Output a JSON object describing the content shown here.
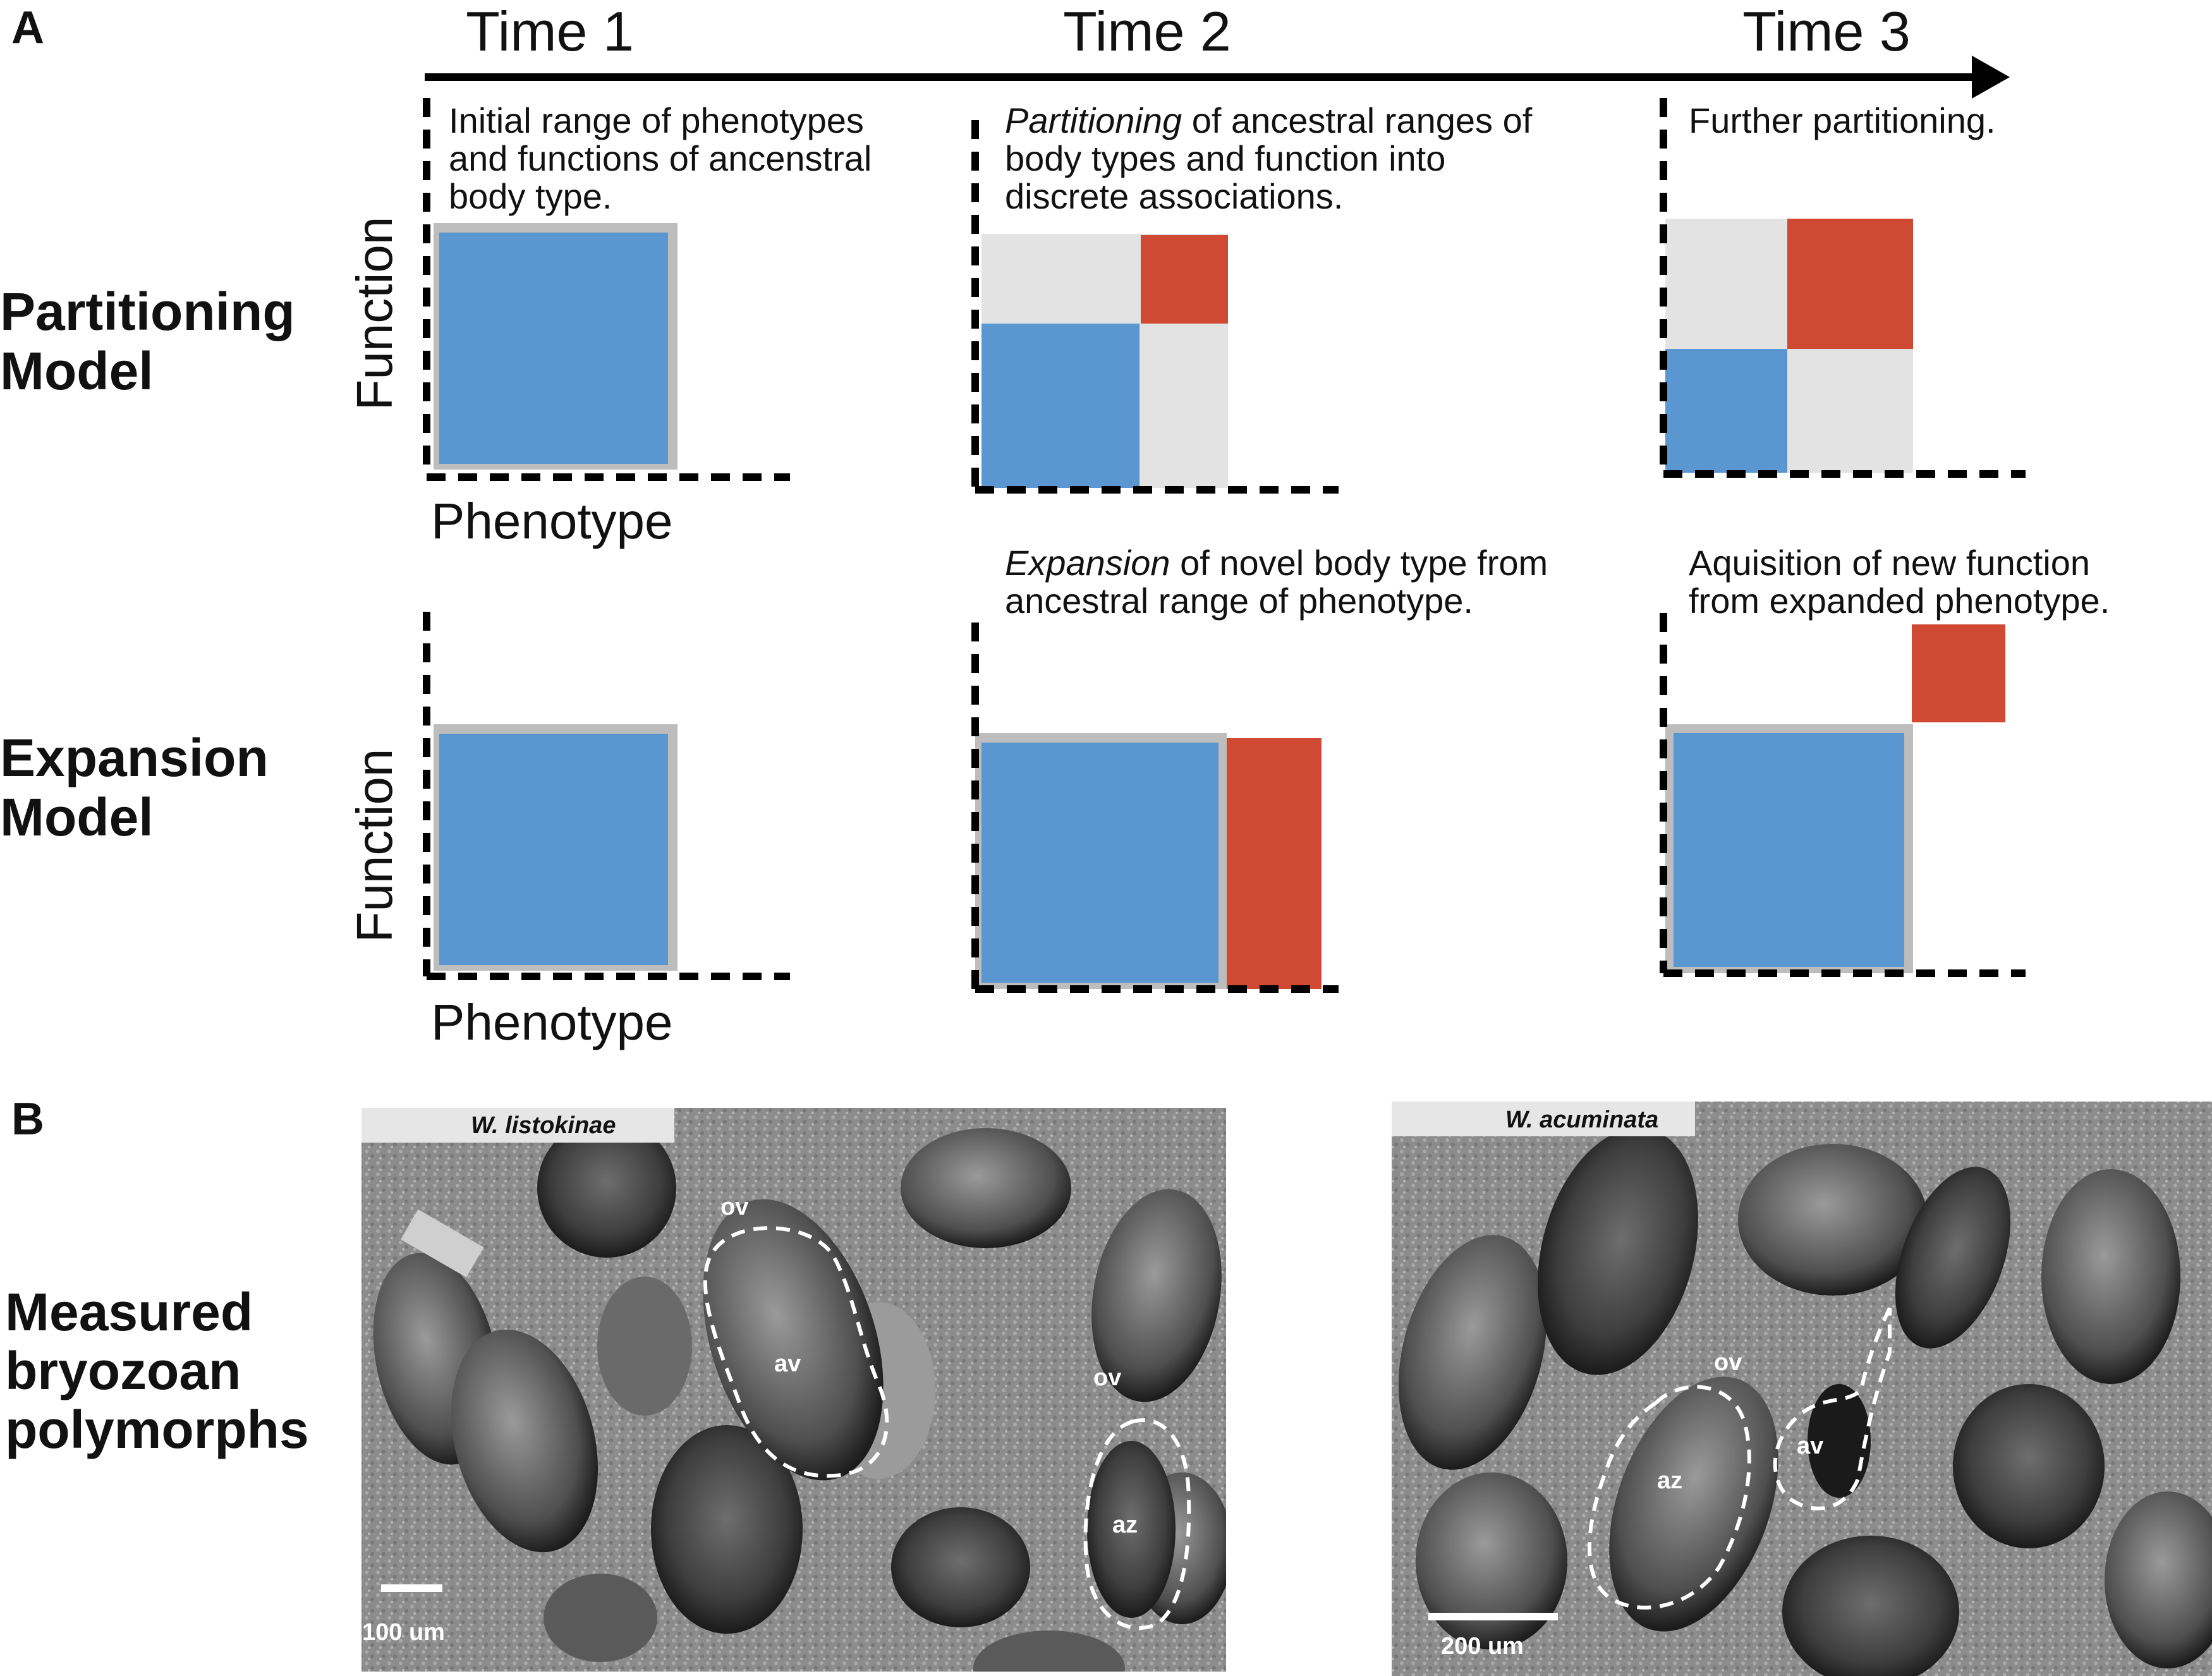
{
  "panel_a": {
    "letter": "A",
    "times": [
      "Time 1",
      "Time 2",
      "Time 3"
    ],
    "rows": {
      "partitioning": [
        "Partitioning",
        "Model"
      ],
      "expansion": [
        "Expansion",
        "Model"
      ]
    },
    "axes": {
      "x": "Phenotype",
      "y": "Function"
    },
    "partitioning_text": {
      "t1": [
        "Initial range of phenotypes",
        "and functions of ancenstral",
        "body type."
      ],
      "t2_italic": "Partitioning",
      "t2_line1_rest": " of ancestral ranges of",
      "t2_lines": [
        "body types and function into",
        "discrete associations."
      ],
      "t3": "Further partitioning."
    },
    "expansion_text": {
      "t2_italic": "Expansion",
      "t2_line1_rest": " of novel body type from",
      "t2_line2": "ancestral range of phenotype.",
      "t3": [
        "Aquisition of new function",
        "from expanded phenotype."
      ]
    }
  },
  "panel_b": {
    "letter": "B",
    "title": [
      "Measured",
      "bryozoan",
      "polymorphs"
    ],
    "photos": [
      {
        "species": "W. listokinae",
        "labels": {
          "ov1": "ov",
          "av": "av",
          "ov2": "ov",
          "az": "az"
        },
        "scale": "100 um"
      },
      {
        "species": "W. acuminata",
        "labels": {
          "ov": "ov",
          "az": "az",
          "av": "av"
        },
        "scale": "200 um"
      }
    ]
  },
  "colors": {
    "blue": "#5a96cf",
    "red": "#d04a33",
    "light_gray": "#e3e3e3",
    "border_gray": "#bdbdbd"
  }
}
